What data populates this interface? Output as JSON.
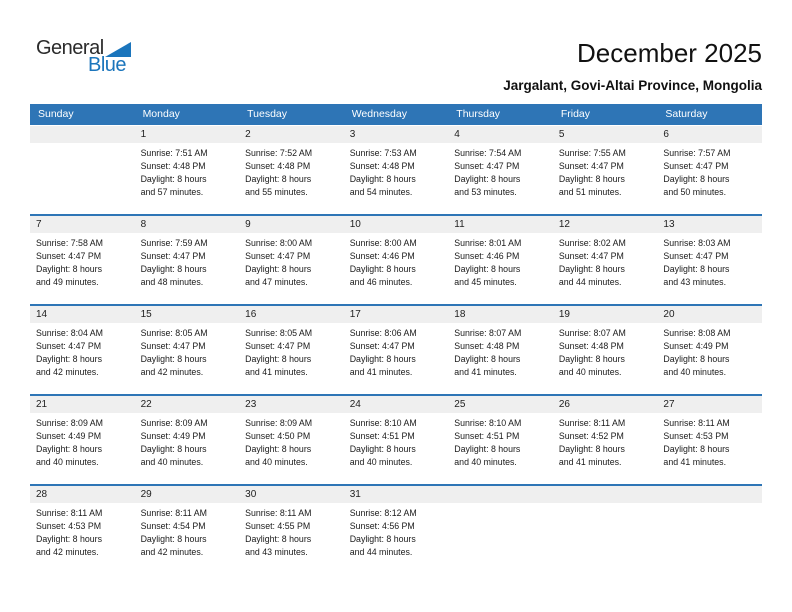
{
  "logo": {
    "word1": "General",
    "word2": "Blue"
  },
  "document": {
    "title": "December 2025",
    "subtitle": "Jargalant, Govi-Altai Province, Mongolia"
  },
  "colors": {
    "header_blue": "#2E75B6",
    "separator_blue": "#2E75B6",
    "logo_blue": "#1B75BC",
    "day_strip_gray": "#EFEFEF",
    "weekday_text": "#FFFFFF"
  },
  "calendar": {
    "weekdays": [
      "Sunday",
      "Monday",
      "Tuesday",
      "Wednesday",
      "Thursday",
      "Friday",
      "Saturday"
    ],
    "weeks": [
      {
        "cells": [
          {},
          {
            "day": "1",
            "sunrise": "Sunrise: 7:51 AM",
            "sunset": "Sunset: 4:48 PM",
            "daylight1": "Daylight: 8 hours",
            "daylight2": "and 57 minutes."
          },
          {
            "day": "2",
            "sunrise": "Sunrise: 7:52 AM",
            "sunset": "Sunset: 4:48 PM",
            "daylight1": "Daylight: 8 hours",
            "daylight2": "and 55 minutes."
          },
          {
            "day": "3",
            "sunrise": "Sunrise: 7:53 AM",
            "sunset": "Sunset: 4:48 PM",
            "daylight1": "Daylight: 8 hours",
            "daylight2": "and 54 minutes."
          },
          {
            "day": "4",
            "sunrise": "Sunrise: 7:54 AM",
            "sunset": "Sunset: 4:47 PM",
            "daylight1": "Daylight: 8 hours",
            "daylight2": "and 53 minutes."
          },
          {
            "day": "5",
            "sunrise": "Sunrise: 7:55 AM",
            "sunset": "Sunset: 4:47 PM",
            "daylight1": "Daylight: 8 hours",
            "daylight2": "and 51 minutes."
          },
          {
            "day": "6",
            "sunrise": "Sunrise: 7:57 AM",
            "sunset": "Sunset: 4:47 PM",
            "daylight1": "Daylight: 8 hours",
            "daylight2": "and 50 minutes."
          }
        ]
      },
      {
        "cells": [
          {
            "day": "7",
            "sunrise": "Sunrise: 7:58 AM",
            "sunset": "Sunset: 4:47 PM",
            "daylight1": "Daylight: 8 hours",
            "daylight2": "and 49 minutes."
          },
          {
            "day": "8",
            "sunrise": "Sunrise: 7:59 AM",
            "sunset": "Sunset: 4:47 PM",
            "daylight1": "Daylight: 8 hours",
            "daylight2": "and 48 minutes."
          },
          {
            "day": "9",
            "sunrise": "Sunrise: 8:00 AM",
            "sunset": "Sunset: 4:47 PM",
            "daylight1": "Daylight: 8 hours",
            "daylight2": "and 47 minutes."
          },
          {
            "day": "10",
            "sunrise": "Sunrise: 8:00 AM",
            "sunset": "Sunset: 4:46 PM",
            "daylight1": "Daylight: 8 hours",
            "daylight2": "and 46 minutes."
          },
          {
            "day": "11",
            "sunrise": "Sunrise: 8:01 AM",
            "sunset": "Sunset: 4:46 PM",
            "daylight1": "Daylight: 8 hours",
            "daylight2": "and 45 minutes."
          },
          {
            "day": "12",
            "sunrise": "Sunrise: 8:02 AM",
            "sunset": "Sunset: 4:47 PM",
            "daylight1": "Daylight: 8 hours",
            "daylight2": "and 44 minutes."
          },
          {
            "day": "13",
            "sunrise": "Sunrise: 8:03 AM",
            "sunset": "Sunset: 4:47 PM",
            "daylight1": "Daylight: 8 hours",
            "daylight2": "and 43 minutes."
          }
        ]
      },
      {
        "cells": [
          {
            "day": "14",
            "sunrise": "Sunrise: 8:04 AM",
            "sunset": "Sunset: 4:47 PM",
            "daylight1": "Daylight: 8 hours",
            "daylight2": "and 42 minutes."
          },
          {
            "day": "15",
            "sunrise": "Sunrise: 8:05 AM",
            "sunset": "Sunset: 4:47 PM",
            "daylight1": "Daylight: 8 hours",
            "daylight2": "and 42 minutes."
          },
          {
            "day": "16",
            "sunrise": "Sunrise: 8:05 AM",
            "sunset": "Sunset: 4:47 PM",
            "daylight1": "Daylight: 8 hours",
            "daylight2": "and 41 minutes."
          },
          {
            "day": "17",
            "sunrise": "Sunrise: 8:06 AM",
            "sunset": "Sunset: 4:47 PM",
            "daylight1": "Daylight: 8 hours",
            "daylight2": "and 41 minutes."
          },
          {
            "day": "18",
            "sunrise": "Sunrise: 8:07 AM",
            "sunset": "Sunset: 4:48 PM",
            "daylight1": "Daylight: 8 hours",
            "daylight2": "and 41 minutes."
          },
          {
            "day": "19",
            "sunrise": "Sunrise: 8:07 AM",
            "sunset": "Sunset: 4:48 PM",
            "daylight1": "Daylight: 8 hours",
            "daylight2": "and 40 minutes."
          },
          {
            "day": "20",
            "sunrise": "Sunrise: 8:08 AM",
            "sunset": "Sunset: 4:49 PM",
            "daylight1": "Daylight: 8 hours",
            "daylight2": "and 40 minutes."
          }
        ]
      },
      {
        "cells": [
          {
            "day": "21",
            "sunrise": "Sunrise: 8:09 AM",
            "sunset": "Sunset: 4:49 PM",
            "daylight1": "Daylight: 8 hours",
            "daylight2": "and 40 minutes."
          },
          {
            "day": "22",
            "sunrise": "Sunrise: 8:09 AM",
            "sunset": "Sunset: 4:49 PM",
            "daylight1": "Daylight: 8 hours",
            "daylight2": "and 40 minutes."
          },
          {
            "day": "23",
            "sunrise": "Sunrise: 8:09 AM",
            "sunset": "Sunset: 4:50 PM",
            "daylight1": "Daylight: 8 hours",
            "daylight2": "and 40 minutes."
          },
          {
            "day": "24",
            "sunrise": "Sunrise: 8:10 AM",
            "sunset": "Sunset: 4:51 PM",
            "daylight1": "Daylight: 8 hours",
            "daylight2": "and 40 minutes."
          },
          {
            "day": "25",
            "sunrise": "Sunrise: 8:10 AM",
            "sunset": "Sunset: 4:51 PM",
            "daylight1": "Daylight: 8 hours",
            "daylight2": "and 40 minutes."
          },
          {
            "day": "26",
            "sunrise": "Sunrise: 8:11 AM",
            "sunset": "Sunset: 4:52 PM",
            "daylight1": "Daylight: 8 hours",
            "daylight2": "and 41 minutes."
          },
          {
            "day": "27",
            "sunrise": "Sunrise: 8:11 AM",
            "sunset": "Sunset: 4:53 PM",
            "daylight1": "Daylight: 8 hours",
            "daylight2": "and 41 minutes."
          }
        ]
      },
      {
        "cells": [
          {
            "day": "28",
            "sunrise": "Sunrise: 8:11 AM",
            "sunset": "Sunset: 4:53 PM",
            "daylight1": "Daylight: 8 hours",
            "daylight2": "and 42 minutes."
          },
          {
            "day": "29",
            "sunrise": "Sunrise: 8:11 AM",
            "sunset": "Sunset: 4:54 PM",
            "daylight1": "Daylight: 8 hours",
            "daylight2": "and 42 minutes."
          },
          {
            "day": "30",
            "sunrise": "Sunrise: 8:11 AM",
            "sunset": "Sunset: 4:55 PM",
            "daylight1": "Daylight: 8 hours",
            "daylight2": "and 43 minutes."
          },
          {
            "day": "31",
            "sunrise": "Sunrise: 8:12 AM",
            "sunset": "Sunset: 4:56 PM",
            "daylight1": "Daylight: 8 hours",
            "daylight2": "and 44 minutes."
          },
          {},
          {},
          {}
        ]
      }
    ]
  }
}
